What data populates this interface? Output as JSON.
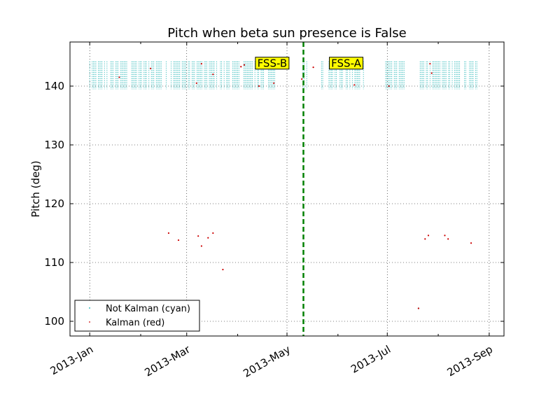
{
  "chart_data": {
    "type": "scatter",
    "title": "Pitch when beta sun presence is False",
    "xlabel": "",
    "ylabel": "Pitch (deg)",
    "x_axis_type": "date",
    "xlim": [
      "2012-12-20",
      "2013-09-10"
    ],
    "ylim": [
      97.5,
      147.5
    ],
    "x_ticks": [
      {
        "date": "2013-01-01",
        "label": "2013-Jan"
      },
      {
        "date": "2013-03-01",
        "label": "2013-Mar"
      },
      {
        "date": "2013-05-01",
        "label": "2013-May"
      },
      {
        "date": "2013-07-01",
        "label": "2013-Jul"
      },
      {
        "date": "2013-09-01",
        "label": "2013-Sep"
      }
    ],
    "x_minor_ticks": [
      "2013-02-01",
      "2013-04-01",
      "2013-06-01",
      "2013-08-01"
    ],
    "y_ticks": [
      100,
      110,
      120,
      130,
      140
    ],
    "grid": true,
    "legend_position": "lower-left",
    "colors": {
      "not_kalman": "#00aaaa",
      "kalman": "#cc0000",
      "divider": "#008000",
      "annotation_bg": "#ffff00"
    },
    "vertical_line": {
      "date": "2013-05-11",
      "style": "dashed"
    },
    "annotations": [
      {
        "text": "FSS-B",
        "date": "2013-04-22",
        "y": 143.9
      },
      {
        "text": "FSS-A",
        "date": "2013-06-06",
        "y": 143.9
      }
    ],
    "series": [
      {
        "name": "Not Kalman (cyan)",
        "marker": "point",
        "dense_band": {
          "x_start": "2013-01-01",
          "x_end": "2013-08-25",
          "y_min": 139.5,
          "y_max": 144.2,
          "gaps": [
            [
              "2013-04-25",
              "2013-05-10"
            ],
            [
              "2013-05-14",
              "2013-05-21"
            ],
            [
              "2013-06-17",
              "2013-06-28"
            ],
            [
              "2013-07-12",
              "2013-07-19"
            ]
          ]
        },
        "points": [
          {
            "x": "2013-07-20",
            "y": 102.2
          }
        ]
      },
      {
        "name": "Kalman (red)",
        "marker": "point",
        "points": [
          {
            "x": "2013-02-18",
            "y": 115.0
          },
          {
            "x": "2013-02-24",
            "y": 113.8
          },
          {
            "x": "2013-03-08",
            "y": 114.5
          },
          {
            "x": "2013-03-10",
            "y": 112.8
          },
          {
            "x": "2013-03-14",
            "y": 114.2
          },
          {
            "x": "2013-03-17",
            "y": 115.0
          },
          {
            "x": "2013-03-23",
            "y": 108.8
          },
          {
            "x": "2013-07-24",
            "y": 114.0
          },
          {
            "x": "2013-07-26",
            "y": 114.6
          },
          {
            "x": "2013-08-05",
            "y": 114.6
          },
          {
            "x": "2013-08-07",
            "y": 114.0
          },
          {
            "x": "2013-08-21",
            "y": 113.3
          },
          {
            "x": "2013-07-20",
            "y": 102.2
          },
          {
            "x": "2013-01-19",
            "y": 141.5
          },
          {
            "x": "2013-02-07",
            "y": 143.0
          },
          {
            "x": "2013-03-07",
            "y": 140.5
          },
          {
            "x": "2013-03-10",
            "y": 143.8
          },
          {
            "x": "2013-03-17",
            "y": 142.0
          },
          {
            "x": "2013-04-03",
            "y": 143.3
          },
          {
            "x": "2013-04-05",
            "y": 143.6
          },
          {
            "x": "2013-04-14",
            "y": 140.0
          },
          {
            "x": "2013-04-23",
            "y": 140.5
          },
          {
            "x": "2013-05-10",
            "y": 141.2
          },
          {
            "x": "2013-05-17",
            "y": 143.2
          },
          {
            "x": "2013-06-11",
            "y": 140.2
          },
          {
            "x": "2013-07-02",
            "y": 140.0
          },
          {
            "x": "2013-07-27",
            "y": 143.8
          },
          {
            "x": "2013-07-28",
            "y": 142.2
          }
        ]
      }
    ]
  }
}
